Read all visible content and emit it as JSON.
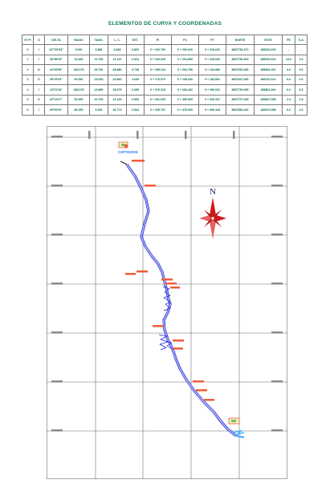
{
  "title": "ELEMENTOS DE CURVA Y COORDENADAS",
  "table": {
    "headers": [
      "Nº PI",
      "G",
      "DELTA",
      "RADIO",
      "TANG.",
      "L. C.",
      "EXT.",
      "PI",
      "PC",
      "PT",
      "NORTE",
      "ESTE",
      "PE",
      "S.A"
    ],
    "rows": [
      [
        "0",
        "I",
        "167°05'53\"",
        "9.000",
        "0.886",
        "0.828",
        "0.820",
        "0 + 162.700",
        "0 + 200.620",
        "0 + 226.620",
        "8837794.374",
        "486004.200",
        "-",
        "-"
      ],
      [
        "1",
        "I",
        "36°58'05\"",
        "16.000",
        "11.700",
        "21.113",
        "3.310",
        "0 + 160.205",
        "0 + 204.850",
        "0 + 226.626",
        "8837780.803",
        "486000.913",
        "10.0",
        "2.6"
      ],
      [
        "2",
        "D",
        "34°49'55\"",
        "180.078",
        "29.751",
        "68.880",
        "3.738",
        "0 + 195.234",
        "0 + 204.756",
        "0 + 134.880",
        "8837652.383",
        "485981.401",
        "4.0",
        "0.6"
      ],
      [
        "3",
        "D",
        "45°29'03\"",
        "60.352",
        "23.000",
        "43.860",
        "4.639",
        "0 + 176.070",
        "0 + 145.040",
        "0 + 184.802",
        "8837547.083",
        "485731.014",
        "0.0",
        "2.6"
      ],
      [
        "4",
        "I",
        "13°31'53\"",
        "185.078",
        "19.850",
        "33.675",
        "0.695",
        "0 + 376.215",
        "0 + 266.420",
        "0 + 290.031",
        "8837730.058",
        "485861.394",
        "0.0",
        "0.5"
      ],
      [
        "5",
        "D",
        "20°14'07\"",
        "60.350",
        "10.763",
        "21.129",
        "0.953",
        "0 + 431.633",
        "0 + 496.669",
        "0 + 460.337",
        "8837767.935",
        "485847.008",
        "2.4",
        "1.5"
      ],
      [
        "6",
        "I",
        "35°06'00\"",
        "80.350",
        "9.400",
        "30.774",
        "0.924",
        "0 + 435.797",
        "0 + 478.000",
        "0 + 496.418",
        "8837582.043",
        "485476.098",
        "0.0",
        "2.6"
      ]
    ]
  },
  "map": {
    "north_label": "N",
    "start_label": "CAPTACION",
    "colors": {
      "route": "#1c24d8",
      "labels": "#f05c3c",
      "grid": "#6e6e6e",
      "north": "#d01818",
      "title": "#0e7c5a",
      "start_label": "#1c6cff"
    }
  }
}
